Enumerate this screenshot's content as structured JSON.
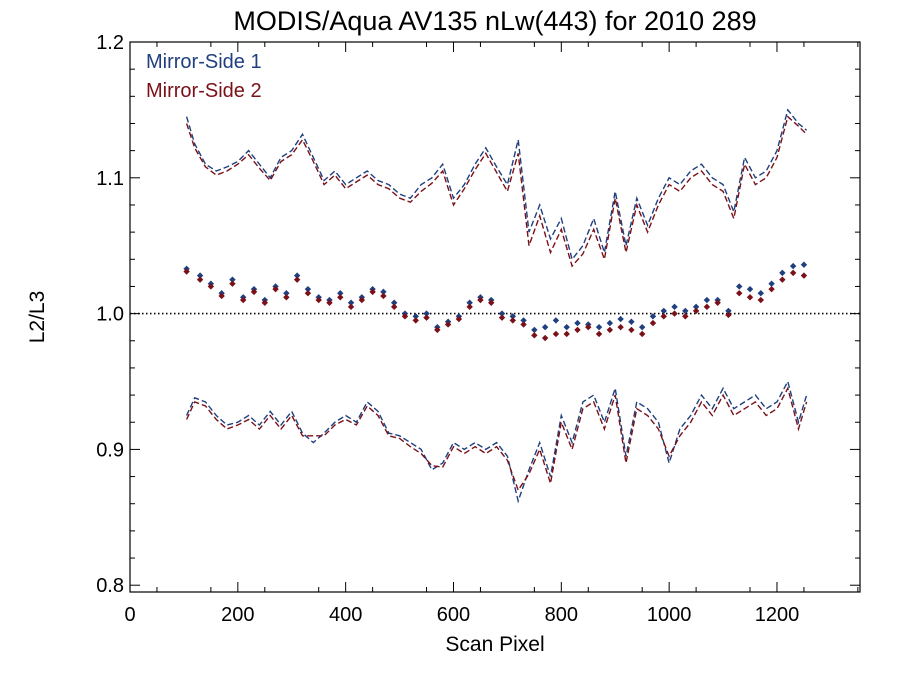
{
  "chart_data": {
    "type": "line",
    "title": "MODIS/Aqua AV135 nLw(443) for 2010 289",
    "xlabel": "Scan Pixel",
    "ylabel": "L2/L3",
    "xlim": [
      0,
      1354
    ],
    "ylim": [
      0.795,
      1.2
    ],
    "x_ticks": [
      0,
      200,
      400,
      600,
      800,
      1000,
      1200
    ],
    "x_tick_labels": [
      "0",
      "200",
      "400",
      "600",
      "800",
      "1000",
      "1200"
    ],
    "y_ticks": [
      0.8,
      0.9,
      1.0,
      1.1,
      1.2
    ],
    "y_tick_labels": [
      "0.8",
      "0.9",
      "1.0",
      "1.1",
      "1.2"
    ],
    "reference_line": 1.0,
    "legend": [
      "Mirror-Side 1",
      "Mirror-Side 2"
    ],
    "legend_position": "top-left",
    "colors": {
      "ms1": "#1f3f7f",
      "ms2": "#7a1018",
      "axis": "#000000"
    },
    "series": [
      {
        "name": "Mirror-Side 1",
        "role": "mean",
        "style": "diamond-markers",
        "color": "#1f3f7f",
        "x": [
          105,
          130,
          150,
          170,
          190,
          210,
          230,
          250,
          270,
          290,
          310,
          330,
          350,
          370,
          390,
          410,
          430,
          450,
          470,
          490,
          510,
          530,
          550,
          570,
          590,
          610,
          630,
          650,
          670,
          690,
          710,
          730,
          750,
          770,
          790,
          810,
          830,
          850,
          870,
          890,
          910,
          930,
          950,
          970,
          990,
          1010,
          1030,
          1050,
          1070,
          1090,
          1110,
          1130,
          1150,
          1170,
          1190,
          1210,
          1230,
          1250
        ],
        "y": [
          1.033,
          1.028,
          1.022,
          1.015,
          1.025,
          1.012,
          1.018,
          1.01,
          1.02,
          1.015,
          1.028,
          1.018,
          1.012,
          1.01,
          1.015,
          1.008,
          1.012,
          1.018,
          1.016,
          1.008,
          1.0,
          0.998,
          1.0,
          0.99,
          0.994,
          0.998,
          1.008,
          1.012,
          1.01,
          1.0,
          0.998,
          0.995,
          0.988,
          0.99,
          0.995,
          0.99,
          0.993,
          0.992,
          0.99,
          0.993,
          0.996,
          0.994,
          0.99,
          0.998,
          1.002,
          1.005,
          1.002,
          1.005,
          1.01,
          1.01,
          1.002,
          1.02,
          1.018,
          1.015,
          1.022,
          1.03,
          1.035,
          1.036
        ]
      },
      {
        "name": "Mirror-Side 2",
        "role": "mean",
        "style": "diamond-markers",
        "color": "#7a1018",
        "x": [
          105,
          130,
          150,
          170,
          190,
          210,
          230,
          250,
          270,
          290,
          310,
          330,
          350,
          370,
          390,
          410,
          430,
          450,
          470,
          490,
          510,
          530,
          550,
          570,
          590,
          610,
          630,
          650,
          670,
          690,
          710,
          730,
          750,
          770,
          790,
          810,
          830,
          850,
          870,
          890,
          910,
          930,
          950,
          970,
          990,
          1010,
          1030,
          1050,
          1070,
          1090,
          1110,
          1130,
          1150,
          1170,
          1190,
          1210,
          1230,
          1250
        ],
        "y": [
          1.031,
          1.025,
          1.02,
          1.013,
          1.022,
          1.01,
          1.016,
          1.008,
          1.018,
          1.012,
          1.025,
          1.015,
          1.01,
          1.008,
          1.012,
          1.005,
          1.01,
          1.016,
          1.013,
          1.005,
          0.998,
          0.995,
          0.997,
          0.988,
          0.992,
          0.996,
          1.005,
          1.01,
          1.008,
          0.997,
          0.995,
          0.992,
          0.984,
          0.982,
          0.985,
          0.985,
          0.988,
          0.99,
          0.985,
          0.988,
          0.99,
          0.988,
          0.985,
          0.993,
          0.998,
          1.0,
          0.998,
          1.002,
          1.005,
          1.008,
          0.999,
          1.015,
          1.012,
          1.01,
          1.018,
          1.025,
          1.03,
          1.028
        ]
      },
      {
        "name": "Mirror-Side 1",
        "role": "upper-envelope",
        "style": "dashed",
        "color": "#1f3f7f",
        "x": [
          105,
          120,
          140,
          160,
          180,
          200,
          220,
          240,
          260,
          280,
          300,
          320,
          340,
          360,
          380,
          400,
          420,
          440,
          460,
          480,
          500,
          520,
          540,
          560,
          580,
          600,
          620,
          640,
          660,
          680,
          700,
          720,
          740,
          760,
          780,
          800,
          820,
          840,
          860,
          880,
          900,
          920,
          940,
          960,
          980,
          1000,
          1020,
          1040,
          1060,
          1080,
          1100,
          1120,
          1140,
          1160,
          1180,
          1200,
          1220,
          1240,
          1255
        ],
        "y": [
          1.145,
          1.125,
          1.11,
          1.105,
          1.108,
          1.112,
          1.12,
          1.11,
          1.1,
          1.115,
          1.12,
          1.132,
          1.115,
          1.098,
          1.105,
          1.095,
          1.1,
          1.105,
          1.098,
          1.095,
          1.088,
          1.085,
          1.095,
          1.1,
          1.11,
          1.085,
          1.095,
          1.11,
          1.122,
          1.108,
          1.095,
          1.128,
          1.06,
          1.08,
          1.055,
          1.07,
          1.04,
          1.05,
          1.07,
          1.045,
          1.09,
          1.05,
          1.085,
          1.065,
          1.085,
          1.1,
          1.095,
          1.105,
          1.11,
          1.1,
          1.095,
          1.075,
          1.115,
          1.1,
          1.105,
          1.12,
          1.15,
          1.14,
          1.135
        ]
      },
      {
        "name": "Mirror-Side 2",
        "role": "upper-envelope",
        "style": "dashed",
        "color": "#7a1018",
        "x": [
          105,
          120,
          140,
          160,
          180,
          200,
          220,
          240,
          260,
          280,
          300,
          320,
          340,
          360,
          380,
          400,
          420,
          440,
          460,
          480,
          500,
          520,
          540,
          560,
          580,
          600,
          620,
          640,
          660,
          680,
          700,
          720,
          740,
          760,
          780,
          800,
          820,
          840,
          860,
          880,
          900,
          920,
          940,
          960,
          980,
          1000,
          1020,
          1040,
          1060,
          1080,
          1100,
          1120,
          1140,
          1160,
          1180,
          1200,
          1220,
          1240,
          1255
        ],
        "y": [
          1.14,
          1.122,
          1.108,
          1.102,
          1.105,
          1.11,
          1.117,
          1.107,
          1.098,
          1.112,
          1.117,
          1.128,
          1.112,
          1.095,
          1.102,
          1.092,
          1.097,
          1.102,
          1.095,
          1.092,
          1.085,
          1.082,
          1.09,
          1.096,
          1.105,
          1.08,
          1.092,
          1.106,
          1.118,
          1.104,
          1.09,
          1.118,
          1.05,
          1.072,
          1.045,
          1.062,
          1.035,
          1.044,
          1.062,
          1.04,
          1.085,
          1.045,
          1.08,
          1.06,
          1.08,
          1.095,
          1.09,
          1.1,
          1.105,
          1.095,
          1.09,
          1.07,
          1.11,
          1.095,
          1.1,
          1.115,
          1.145,
          1.138,
          1.132
        ]
      },
      {
        "name": "Mirror-Side 1",
        "role": "lower-envelope",
        "style": "dashed",
        "color": "#1f3f7f",
        "x": [
          105,
          120,
          140,
          160,
          180,
          200,
          220,
          240,
          260,
          280,
          300,
          320,
          340,
          360,
          380,
          400,
          420,
          440,
          460,
          480,
          500,
          520,
          540,
          560,
          580,
          600,
          620,
          640,
          660,
          680,
          700,
          720,
          740,
          760,
          780,
          800,
          820,
          840,
          860,
          880,
          900,
          920,
          940,
          960,
          980,
          1000,
          1020,
          1040,
          1060,
          1080,
          1100,
          1120,
          1140,
          1160,
          1180,
          1200,
          1220,
          1240,
          1255
        ],
        "y": [
          0.925,
          0.938,
          0.935,
          0.925,
          0.918,
          0.92,
          0.925,
          0.918,
          0.928,
          0.918,
          0.928,
          0.912,
          0.905,
          0.912,
          0.92,
          0.925,
          0.92,
          0.935,
          0.928,
          0.912,
          0.91,
          0.905,
          0.9,
          0.885,
          0.89,
          0.905,
          0.9,
          0.905,
          0.9,
          0.905,
          0.895,
          0.862,
          0.885,
          0.905,
          0.88,
          0.925,
          0.905,
          0.935,
          0.94,
          0.92,
          0.945,
          0.895,
          0.935,
          0.93,
          0.92,
          0.89,
          0.915,
          0.925,
          0.94,
          0.93,
          0.945,
          0.93,
          0.935,
          0.94,
          0.93,
          0.935,
          0.95,
          0.92,
          0.94
        ]
      },
      {
        "name": "Mirror-Side 2",
        "role": "lower-envelope",
        "style": "dashed",
        "color": "#7a1018",
        "x": [
          105,
          120,
          140,
          160,
          180,
          200,
          220,
          240,
          260,
          280,
          300,
          320,
          340,
          360,
          380,
          400,
          420,
          440,
          460,
          480,
          500,
          520,
          540,
          560,
          580,
          600,
          620,
          640,
          660,
          680,
          700,
          720,
          740,
          760,
          780,
          800,
          820,
          840,
          860,
          880,
          900,
          920,
          940,
          960,
          980,
          1000,
          1020,
          1040,
          1060,
          1080,
          1100,
          1120,
          1140,
          1160,
          1180,
          1200,
          1220,
          1240,
          1255
        ],
        "y": [
          0.922,
          0.935,
          0.932,
          0.922,
          0.915,
          0.918,
          0.922,
          0.915,
          0.925,
          0.915,
          0.925,
          0.91,
          0.91,
          0.91,
          0.918,
          0.922,
          0.918,
          0.932,
          0.925,
          0.91,
          0.908,
          0.902,
          0.897,
          0.888,
          0.887,
          0.902,
          0.897,
          0.902,
          0.897,
          0.902,
          0.892,
          0.87,
          0.882,
          0.9,
          0.875,
          0.92,
          0.9,
          0.93,
          0.935,
          0.915,
          0.94,
          0.89,
          0.93,
          0.925,
          0.915,
          0.895,
          0.91,
          0.92,
          0.935,
          0.925,
          0.94,
          0.925,
          0.93,
          0.935,
          0.925,
          0.93,
          0.945,
          0.915,
          0.935
        ]
      }
    ]
  }
}
